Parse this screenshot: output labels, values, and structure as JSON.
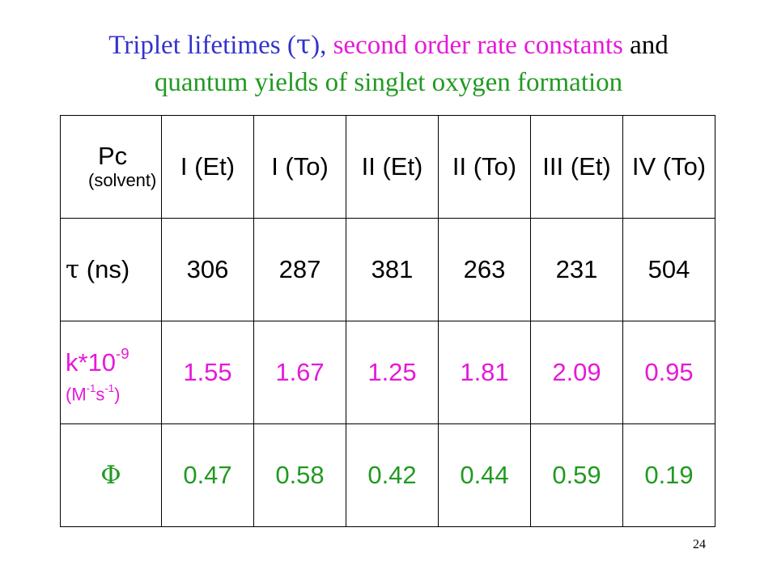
{
  "title": {
    "part1": "Triplet lifetimes (",
    "tau": "τ",
    "part2": "), ",
    "part3": "second order rate constants",
    "part4": " and",
    "line2": "quantum yields of singlet oxygen formation"
  },
  "table": {
    "header": {
      "pc": "Pc",
      "solvent": "(solvent)",
      "columns": [
        "I (Et)",
        "I (To)",
        "II (Et)",
        "II (To)",
        "III (Et)",
        "IV (To)"
      ]
    },
    "tau_row": {
      "symbol": "τ",
      "unit": " (ns)",
      "values": [
        "306",
        "287",
        "381",
        "263",
        "231",
        "504"
      ]
    },
    "k_row": {
      "label": "k*10",
      "exp": "-9",
      "unit_open": "(M",
      "unit_exp1": "-1",
      "unit_s": "s",
      "unit_exp2": "-1",
      "unit_close": ")",
      "values": [
        "1.55",
        "1.67",
        "1.25",
        "1.81",
        "2.09",
        "0.95"
      ]
    },
    "phi_row": {
      "symbol": "Φ",
      "values": [
        "0.47",
        "0.58",
        "0.42",
        "0.44",
        "0.59",
        "0.19"
      ]
    }
  },
  "slide_number": "24",
  "colors": {
    "blue": "#3333cc",
    "magenta": "#e619d9",
    "green": "#219a21"
  }
}
